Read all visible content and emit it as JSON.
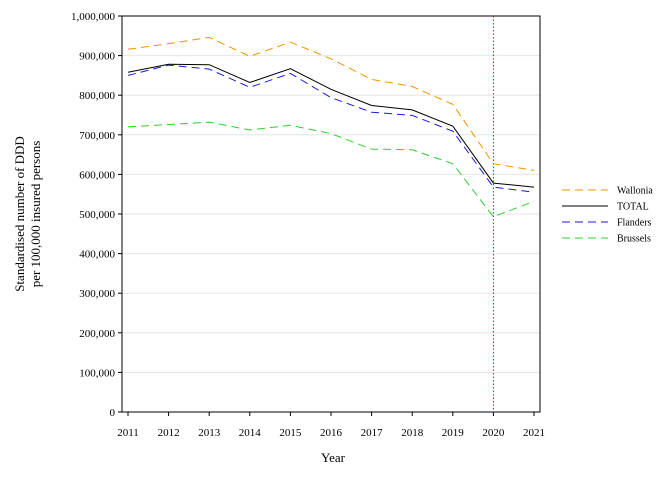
{
  "chart_data": {
    "type": "line",
    "xlabel": "Year",
    "ylabel_lines": [
      "Standardised number of DDD",
      "per 100,000 insured persons"
    ],
    "x": [
      2011,
      2012,
      2013,
      2014,
      2015,
      2016,
      2017,
      2018,
      2019,
      2020,
      2021
    ],
    "x_tick_labels": [
      "2011",
      "2012",
      "2013",
      "2014",
      "2015",
      "2016",
      "2017",
      "2018",
      "2019",
      "2020",
      "2021"
    ],
    "ylim": [
      0,
      1000000
    ],
    "y_tick_labels": [
      "0",
      "100,000",
      "200,000",
      "300,000",
      "400,000",
      "500,000",
      "600,000",
      "700,000",
      "800,000",
      "900,000",
      "1,000,000"
    ],
    "y_ticks": [
      0,
      100000,
      200000,
      300000,
      400000,
      500000,
      600000,
      700000,
      800000,
      900000,
      1000000
    ],
    "grid": "horizontal",
    "legend_position": "right",
    "reference_line": {
      "x": 2020,
      "color": "#c0102a",
      "style": "dotted"
    },
    "series": [
      {
        "name": "Wallonia",
        "color": "#f39200",
        "dash": "dashed",
        "values": [
          916000,
          930000,
          946000,
          898000,
          934000,
          892000,
          840000,
          822000,
          777000,
          627000,
          610000
        ]
      },
      {
        "name": "TOTAL",
        "color": "#000000",
        "dash": "solid",
        "values": [
          858000,
          878000,
          877000,
          832000,
          867000,
          815000,
          774000,
          763000,
          722000,
          578000,
          568000
        ]
      },
      {
        "name": "Flanders",
        "color": "#1a1ad8",
        "dash": "dashed",
        "values": [
          850000,
          876000,
          866000,
          820000,
          855000,
          794000,
          757000,
          749000,
          709000,
          568000,
          555000
        ]
      },
      {
        "name": "Brussels",
        "color": "#33cc33",
        "dash": "dashed",
        "values": [
          720000,
          726000,
          732000,
          712000,
          724000,
          703000,
          664000,
          662000,
          627000,
          493000,
          532000
        ]
      }
    ]
  }
}
